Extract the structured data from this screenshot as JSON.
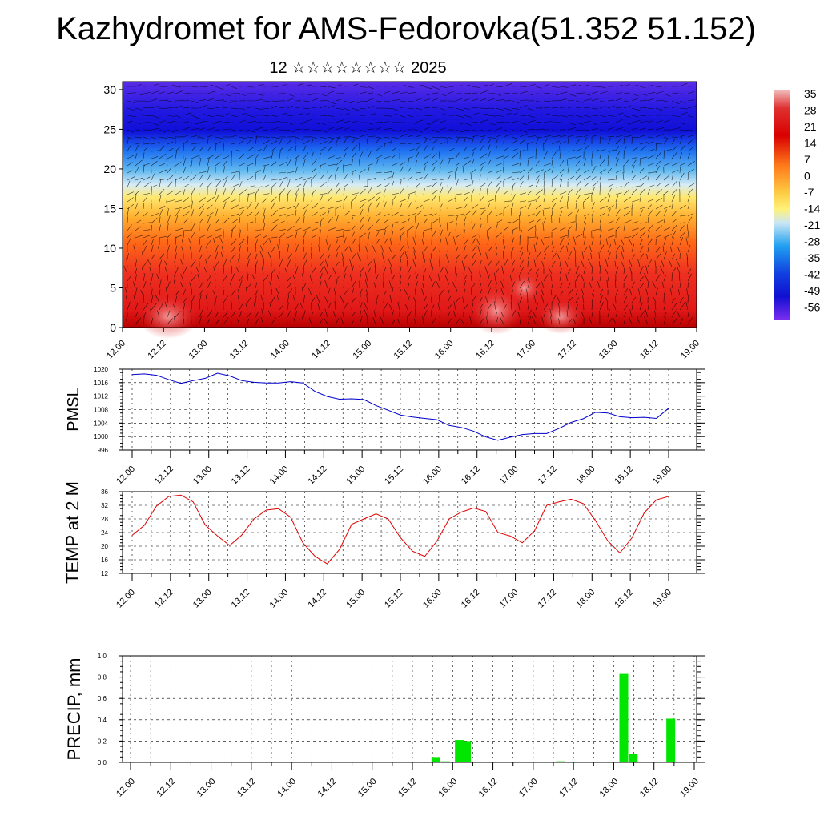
{
  "title": "Kazhydromet for AMS-Fedorovka(51.352 51.152)",
  "subtitle": "12 ☆☆☆☆☆☆☆☆ 2025",
  "time_ticks": [
    "12.00",
    "12.12",
    "13.00",
    "13.12",
    "14.00",
    "14.12",
    "15.00",
    "15.12",
    "16.00",
    "16.12",
    "17.00",
    "17.12",
    "18.00",
    "18.12",
    "19.00"
  ],
  "colorbar": {
    "labels": [
      "35",
      "28",
      "21",
      "14",
      "7",
      "0",
      "-7",
      "-14",
      "-21",
      "-28",
      "-35",
      "-42",
      "-49",
      "-56"
    ],
    "colors": [
      "#f2b3b3",
      "#e0302a",
      "#ff8c1a",
      "#fff27a",
      "#c9e6f5",
      "#1e90ff",
      "#1010d0",
      "#7a2cf0"
    ]
  },
  "chart_data": [
    {
      "type": "heatmap",
      "description_free": true,
      "xlabel": "",
      "ylabel": "",
      "ylim": [
        0,
        31
      ],
      "yticks": [
        0,
        5,
        10,
        15,
        20,
        25,
        30
      ],
      "x": [
        "12.00",
        "12.12",
        "13.00",
        "13.12",
        "14.00",
        "14.12",
        "15.00",
        "15.12",
        "16.00",
        "16.12",
        "17.00",
        "17.12",
        "18.00",
        "18.12",
        "19.00"
      ],
      "value_range": [
        -56,
        35
      ],
      "overlay": "wind-vectors"
    },
    {
      "type": "line",
      "ylabel": "PMSL",
      "ylim": [
        996,
        1020
      ],
      "yticks": [
        996,
        1000,
        1004,
        1008,
        1012,
        1016,
        1020
      ],
      "x_start": "12.00",
      "x_end": "19.00",
      "step_hours": 3,
      "color": "#0000cc",
      "values": [
        1018.4,
        1018.6,
        1018.2,
        1016.9,
        1015.8,
        1016.6,
        1017.3,
        1018.8,
        1018.0,
        1016.6,
        1016.1,
        1015.9,
        1015.9,
        1016.3,
        1015.9,
        1013.4,
        1011.9,
        1011.1,
        1011.2,
        1011.0,
        1009.2,
        1007.8,
        1006.4,
        1005.8,
        1005.4,
        1005.0,
        1003.3,
        1002.7,
        1001.6,
        999.9,
        998.9,
        999.8,
        1000.6,
        1000.9,
        1000.9,
        1002.4,
        1004.2,
        1005.3,
        1007.2,
        1007.0,
        1005.9,
        1005.6,
        1005.7,
        1005.4,
        1008.4
      ]
    },
    {
      "type": "line",
      "ylabel": "TEMP at 2 M",
      "ylim": [
        12,
        36
      ],
      "yticks": [
        12,
        16,
        20,
        24,
        28,
        32,
        36
      ],
      "x_start": "12.00",
      "x_end": "19.00",
      "step_hours": 3,
      "color": "#e00000",
      "values": [
        23.2,
        26.1,
        31.8,
        34.6,
        35.0,
        33.0,
        26.2,
        23.0,
        20.2,
        23.3,
        28.0,
        30.6,
        31.0,
        28.5,
        21.0,
        17.0,
        14.8,
        19.0,
        26.4,
        28.0,
        29.5,
        28.0,
        22.5,
        18.5,
        17.0,
        21.5,
        28.0,
        30.0,
        31.2,
        30.2,
        24.0,
        23.0,
        21.0,
        24.5,
        32.0,
        33.0,
        33.8,
        32.5,
        27.5,
        21.6,
        18.0,
        22.5,
        29.8,
        33.6,
        34.6
      ]
    },
    {
      "type": "bar",
      "ylabel": "PRECIP, mm",
      "ylim": [
        0,
        1.0
      ],
      "yticks": [
        "0.0",
        "0.2",
        "0.4",
        "0.6",
        "0.8",
        "1.0"
      ],
      "color": "#00e600",
      "bars": [
        {
          "t": 13.0,
          "value": 0.05
        },
        {
          "t": 13.4,
          "value": 0.01
        },
        {
          "t": 14.0,
          "value": 0.21
        },
        {
          "t": 14.3,
          "value": 0.2
        },
        {
          "t": 18.3,
          "value": 0.01
        },
        {
          "t": 21.0,
          "value": 0.83
        },
        {
          "t": 21.4,
          "value": 0.08
        },
        {
          "t": 23.0,
          "value": 0.41
        }
      ]
    }
  ]
}
